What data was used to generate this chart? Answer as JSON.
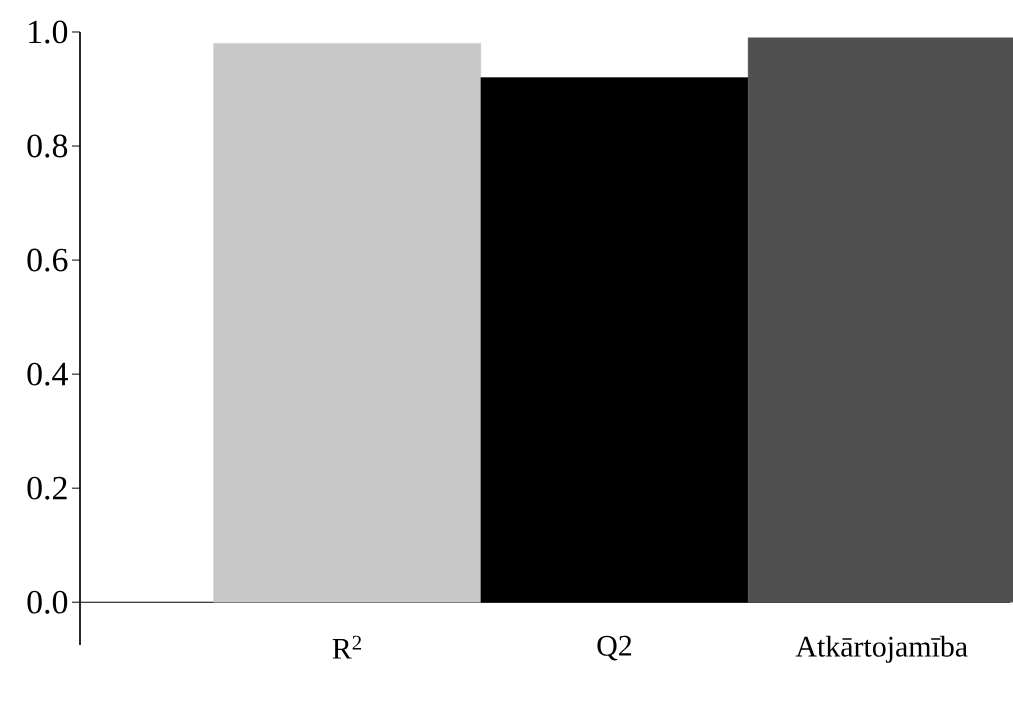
{
  "chart_data": {
    "type": "bar",
    "categories": [
      "R$^{2}$",
      "Q2",
      "Atkārtojamība"
    ],
    "values": [
      0.98,
      0.92,
      0.99
    ],
    "colors": [
      "#c8c8c8",
      "#000000",
      "#505050"
    ],
    "ylim": [
      -0.075,
      1.0
    ],
    "yticks": [
      {
        "value": 0,
        "label": "0.0"
      },
      {
        "value": 0.2,
        "label": "0.2"
      },
      {
        "value": 0.4,
        "label": "0.4"
      },
      {
        "value": 0.6,
        "label": "0.6"
      },
      {
        "value": 0.8,
        "label": "0.8"
      },
      {
        "value": 1,
        "label": "1.0"
      }
    ]
  }
}
